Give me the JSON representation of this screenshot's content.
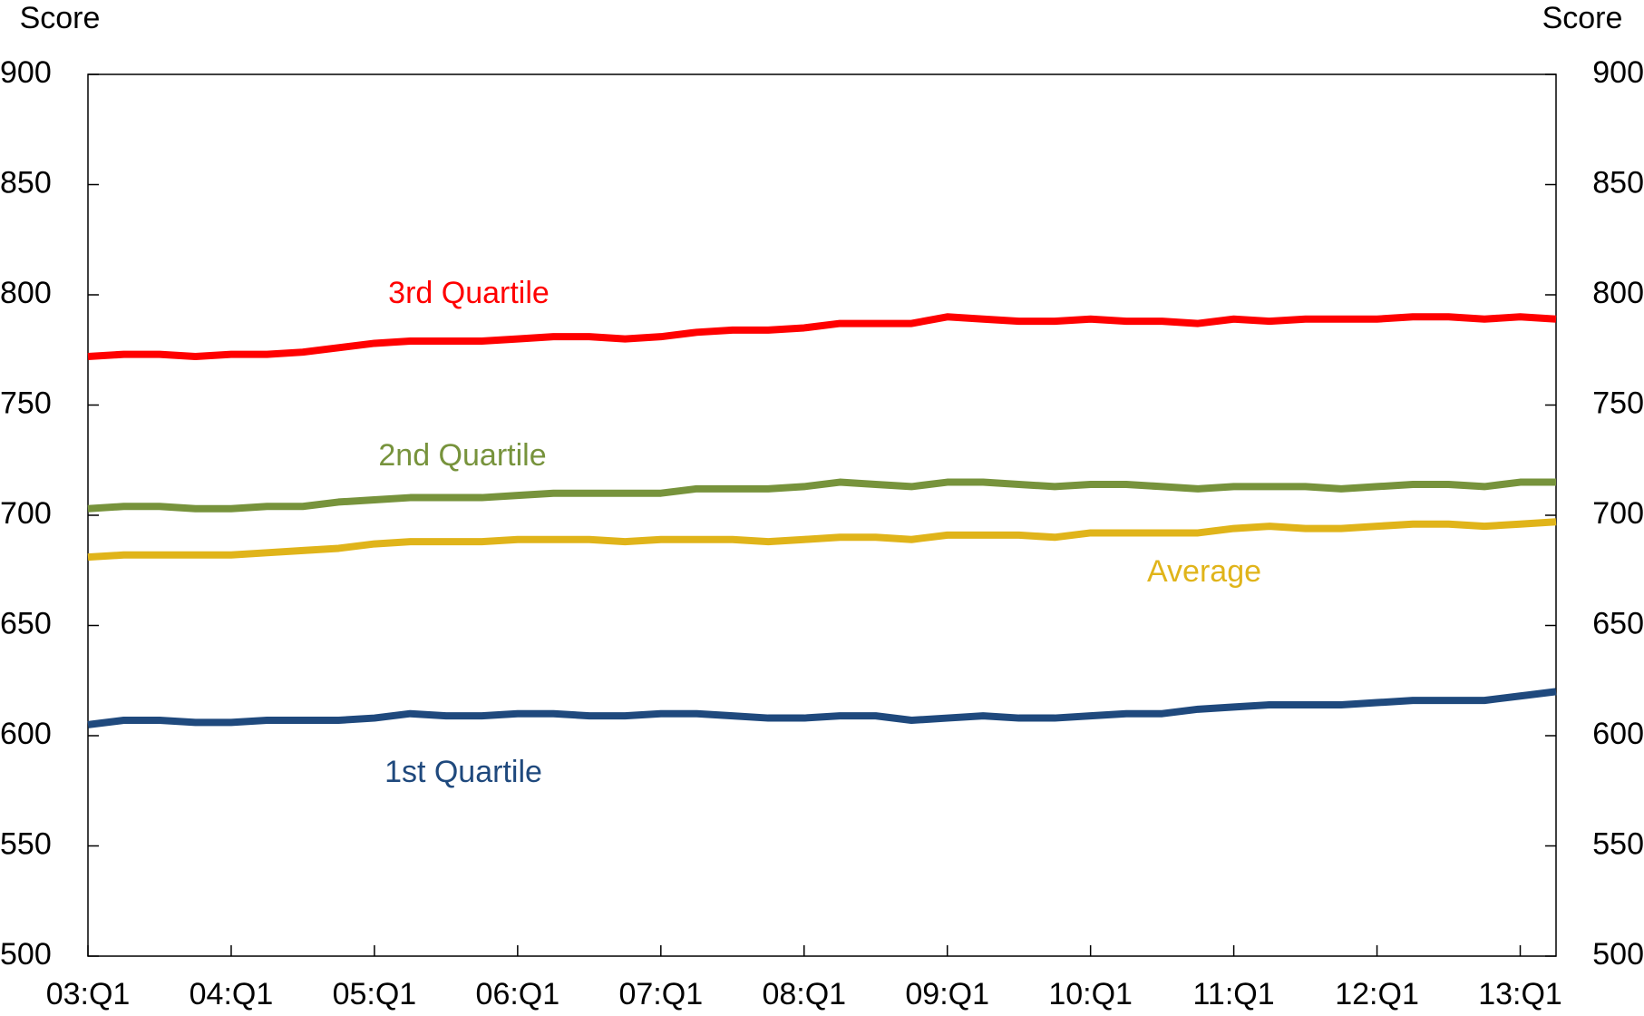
{
  "chart_data": {
    "type": "line",
    "y_label": "Score",
    "y2_label": "Score",
    "categories": [
      "03:Q1",
      null,
      null,
      null,
      "04:Q1",
      null,
      null,
      null,
      "05:Q1",
      null,
      null,
      null,
      "06:Q1",
      null,
      null,
      null,
      "07:Q1",
      null,
      null,
      null,
      "08:Q1",
      null,
      null,
      null,
      "09:Q1",
      null,
      null,
      null,
      "10:Q1",
      null,
      null,
      null,
      "11:Q1",
      null,
      null,
      null,
      "12:Q1",
      null,
      null,
      null,
      "13:Q1",
      null
    ],
    "series": [
      {
        "name": "3rd Quartile",
        "color": "#ff0000",
        "values": [
          772,
          773,
          773,
          772,
          773,
          773,
          774,
          776,
          778,
          779,
          779,
          779,
          780,
          781,
          781,
          780,
          781,
          783,
          784,
          784,
          785,
          787,
          787,
          787,
          790,
          789,
          788,
          788,
          789,
          788,
          788,
          787,
          789,
          788,
          789,
          789,
          789,
          790,
          790,
          789,
          790,
          789
        ]
      },
      {
        "name": "2nd Quartile",
        "color": "#77933c",
        "values": [
          703,
          704,
          704,
          703,
          703,
          704,
          704,
          706,
          707,
          708,
          708,
          708,
          709,
          710,
          710,
          710,
          710,
          712,
          712,
          712,
          713,
          715,
          714,
          713,
          715,
          715,
          714,
          713,
          714,
          714,
          713,
          712,
          713,
          713,
          713,
          712,
          713,
          714,
          714,
          713,
          715,
          715
        ]
      },
      {
        "name": "Average",
        "color": "#e0b41a",
        "values": [
          681,
          682,
          682,
          682,
          682,
          683,
          684,
          685,
          687,
          688,
          688,
          688,
          689,
          689,
          689,
          688,
          689,
          689,
          689,
          688,
          689,
          690,
          690,
          689,
          691,
          691,
          691,
          690,
          692,
          692,
          692,
          692,
          694,
          695,
          694,
          694,
          695,
          696,
          696,
          695,
          696,
          697
        ]
      },
      {
        "name": "1st Quartile",
        "color": "#1f497d",
        "values": [
          605,
          607,
          607,
          606,
          606,
          607,
          607,
          607,
          608,
          610,
          609,
          609,
          610,
          610,
          609,
          609,
          610,
          610,
          609,
          608,
          608,
          609,
          609,
          607,
          608,
          609,
          608,
          608,
          609,
          610,
          610,
          612,
          613,
          614,
          614,
          614,
          615,
          616,
          616,
          616,
          618,
          620
        ]
      }
    ],
    "ylim": [
      500,
      900
    ],
    "yticks": [
      500,
      550,
      600,
      650,
      700,
      750,
      800,
      850,
      900
    ],
    "y2lim": [
      500,
      900
    ],
    "y2ticks": [
      500,
      550,
      600,
      650,
      700,
      750,
      800,
      850,
      900
    ],
    "grid": false
  }
}
